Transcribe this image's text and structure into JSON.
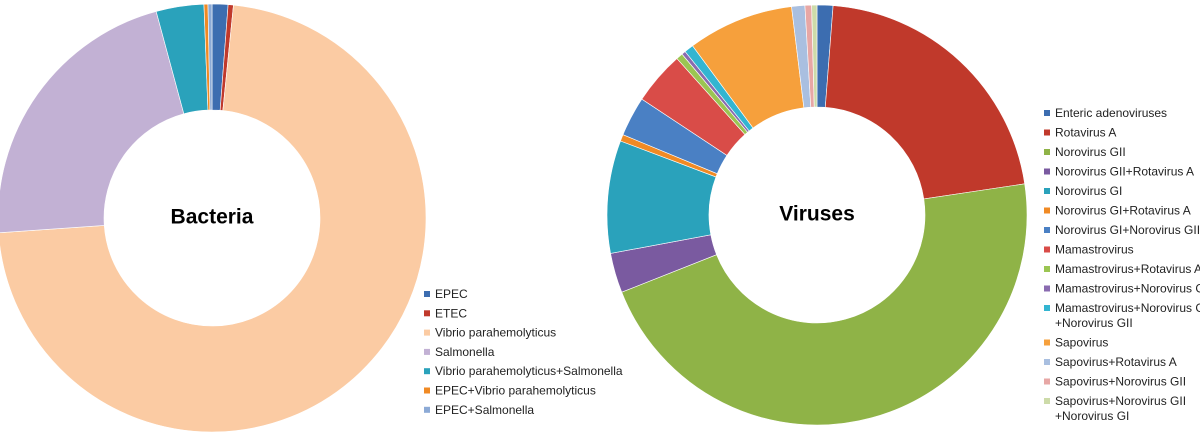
{
  "chart_data": [
    {
      "type": "donut",
      "center_label": "Bacteria",
      "legend_position": "bottom-right",
      "slices": [
        {
          "label": "EPEC",
          "value": 1.2,
          "color": "#3c6db0"
        },
        {
          "label": "ETEC",
          "value": 0.4,
          "color": "#c0392b"
        },
        {
          "label": "Vibrio parahemolyticus",
          "value": 72.3,
          "color": "#fbcba3"
        },
        {
          "label": "Salmonella",
          "value": 21.9,
          "color": "#c2b1d4"
        },
        {
          "label": "Vibrio parahemolyticus+Salmonella",
          "value": 3.6,
          "color": "#2aa2bb"
        },
        {
          "label": "EPEC+Vibrio parahemolyticus",
          "value": 0.3,
          "color": "#f08a24"
        },
        {
          "label": "EPEC+Salmonella",
          "value": 0.3,
          "color": "#8caad6"
        }
      ]
    },
    {
      "type": "donut",
      "center_label": "Viruses",
      "legend_position": "right",
      "slices": [
        {
          "label": "Enteric adenoviruses",
          "value": 1.2,
          "color": "#3c6db0"
        },
        {
          "label": "Rotavirus A",
          "value": 21.0,
          "color": "#c0392b"
        },
        {
          "label": "Norovirus GII",
          "value": 45.5,
          "color": "#8fb347"
        },
        {
          "label": "Norovirus GII+Rotavirus A",
          "value": 3.0,
          "color": "#7a5aa0"
        },
        {
          "label": "Norovirus GI",
          "value": 8.5,
          "color": "#2aa2bb"
        },
        {
          "label": "Norovirus GI+Rotavirus A",
          "value": 0.5,
          "color": "#f08a24"
        },
        {
          "label": "Norovirus GI+Norovirus GII",
          "value": 3.0,
          "color": "#4a80c4"
        },
        {
          "label": "Mamastrovirus",
          "value": 4.0,
          "color": "#d94c48"
        },
        {
          "label": "Mamastrovirus+Rotavirus A",
          "value": 0.5,
          "color": "#9bc552"
        },
        {
          "label": "Mamastrovirus+Norovirus GI",
          "value": 0.3,
          "color": "#8a6bb0"
        },
        {
          "label": "Mamastrovirus+Norovirus GI +Norovirus GII",
          "value": 0.7,
          "color": "#33b5d1"
        },
        {
          "label": "Sapovirus",
          "value": 8.0,
          "color": "#f6a03c"
        },
        {
          "label": "Sapovirus+Rotavirus A",
          "value": 1.0,
          "color": "#a9bfe0"
        },
        {
          "label": "Sapovirus+Norovirus GII",
          "value": 0.5,
          "color": "#e7a7a5"
        },
        {
          "label": "Sapovirus+Norovirus GII +Norovirus GI",
          "value": 0.4,
          "color": "#cddba9"
        }
      ]
    }
  ]
}
